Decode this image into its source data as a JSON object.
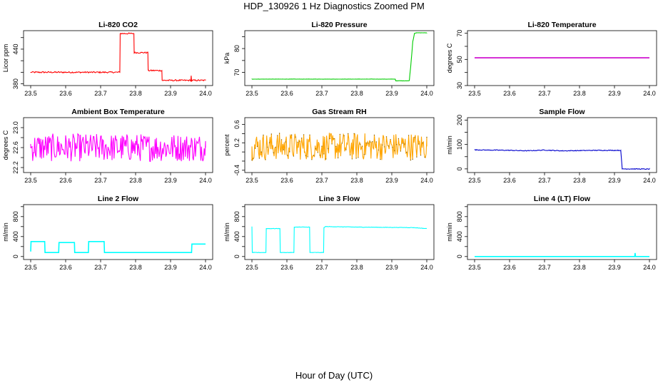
{
  "figure": {
    "title": "HDP_130926  1 Hz Diagnostics Zoomed PM",
    "xlabel": "Hour of Day (UTC)"
  },
  "chart_data": [
    {
      "type": "line",
      "title": "Li-820 CO2",
      "ylabel": "Licor ppm",
      "color": "#ff0000",
      "xlim": [
        23.5,
        24.0
      ],
      "xticks": [
        "23.5",
        "23.6",
        "23.7",
        "23.8",
        "23.9",
        "24.0"
      ],
      "ylim": [
        377,
        472
      ],
      "yticks": [
        "380",
        "440"
      ],
      "ytick_values": [
        380,
        440
      ],
      "y_extra_ticks": [
        400,
        420,
        460
      ],
      "x": [
        23.5,
        23.755,
        23.756,
        23.795,
        23.796,
        23.835,
        23.836,
        23.875,
        23.876,
        23.958,
        23.959,
        23.96,
        23.961,
        24.0
      ],
      "y": [
        400,
        400,
        467,
        467,
        434,
        434,
        403,
        403,
        386,
        386,
        394,
        384,
        386,
        386
      ],
      "noise": 1.2
    },
    {
      "type": "line",
      "title": "Li-820 Pressure",
      "ylabel": "kPa",
      "color": "#00cc00",
      "xlim": [
        23.5,
        24.0
      ],
      "xticks": [
        "23.5",
        "23.6",
        "23.7",
        "23.8",
        "23.9",
        "24.0"
      ],
      "ylim": [
        64.5,
        87.5
      ],
      "yticks": [
        "70",
        "80"
      ],
      "ytick_values": [
        70,
        80
      ],
      "y_extra_ticks": [
        75,
        85
      ],
      "x": [
        23.5,
        23.91,
        23.911,
        23.95,
        23.955,
        23.96,
        23.965,
        23.97,
        24.0
      ],
      "y": [
        67.2,
        67.2,
        66.5,
        66.5,
        74,
        83,
        86.4,
        86.6,
        86.6
      ],
      "noise": 0.05
    },
    {
      "type": "line",
      "title": "Li-820 Temperature",
      "ylabel": "degrees C",
      "color": "#cc00cc",
      "xlim": [
        23.5,
        24.0
      ],
      "xticks": [
        "23.5",
        "23.6",
        "23.7",
        "23.8",
        "23.9",
        "24.0"
      ],
      "ylim": [
        30,
        72
      ],
      "yticks": [
        "30",
        "50",
        "70"
      ],
      "ytick_values": [
        30,
        50,
        70
      ],
      "y_extra_ticks": [
        40,
        60
      ],
      "x": [
        23.5,
        24.0
      ],
      "y": [
        51.2,
        51.2
      ],
      "noise": 0
    },
    {
      "type": "line",
      "title": "Ambient Box Temperature",
      "ylabel": "degrees C",
      "color": "#ff00ff",
      "xlim": [
        23.5,
        24.0
      ],
      "xticks": [
        "23.5",
        "23.6",
        "23.7",
        "23.8",
        "23.9",
        "24.0"
      ],
      "ylim": [
        22.1,
        23.2
      ],
      "yticks": [
        "22.2",
        "22.6",
        "23.0"
      ],
      "ytick_values": [
        22.2,
        22.6,
        23.0
      ],
      "y_extra_ticks": [
        22.4,
        22.8
      ],
      "x": [
        23.5,
        24.0
      ],
      "y": [
        22.6,
        22.6
      ],
      "noise": 0.28
    },
    {
      "type": "line",
      "title": "Gas Stream RH",
      "ylabel": "percent",
      "color": "#ffa500",
      "marker_color": "#8b6508",
      "xlim": [
        23.5,
        24.0
      ],
      "xticks": [
        "23.5",
        "23.6",
        "23.7",
        "23.8",
        "23.9",
        "24.0"
      ],
      "ylim": [
        -0.45,
        0.75
      ],
      "yticks": [
        "-0.4",
        "0.2",
        "0.6"
      ],
      "ytick_values": [
        -0.4,
        0.2,
        0.6
      ],
      "y_extra_ticks": [
        -0.2,
        0.0,
        0.4
      ],
      "x": [
        23.5,
        24.0
      ],
      "y": [
        0.12,
        0.12
      ],
      "noise": 0.3
    },
    {
      "type": "line",
      "title": "Sample Flow",
      "ylabel": "ml/min",
      "color": "#0000cd",
      "xlim": [
        23.5,
        24.0
      ],
      "xticks": [
        "23.5",
        "23.6",
        "23.7",
        "23.8",
        "23.9",
        "24.0"
      ],
      "ylim": [
        -15,
        210
      ],
      "yticks": [
        "0",
        "100",
        "200"
      ],
      "ytick_values": [
        0,
        100,
        200
      ],
      "y_extra_ticks": [
        50,
        150
      ],
      "x": [
        23.5,
        23.6,
        23.65,
        23.7,
        23.75,
        23.8,
        23.85,
        23.918,
        23.922,
        23.95,
        24.0
      ],
      "y": [
        78,
        76,
        74,
        77,
        74,
        75,
        76,
        76,
        0,
        0,
        -1
      ],
      "noise": 1.5
    },
    {
      "type": "line",
      "title": "Line 2 Flow",
      "ylabel": "ml/min",
      "color": "#00ffff",
      "xlim": [
        23.5,
        24.0
      ],
      "xticks": [
        "23.5",
        "23.6",
        "23.7",
        "23.8",
        "23.9",
        "24.0"
      ],
      "ylim": [
        -60,
        1040
      ],
      "yticks": [
        "0",
        "400",
        "800"
      ],
      "ytick_values": [
        0,
        400,
        800
      ],
      "y_extra_ticks": [
        200,
        600,
        1000
      ],
      "x": [
        23.5,
        23.501,
        23.54,
        23.541,
        23.58,
        23.581,
        23.625,
        23.626,
        23.665,
        23.666,
        23.71,
        23.711,
        23.96,
        23.961,
        24.0
      ],
      "y": [
        100,
        300,
        300,
        80,
        80,
        280,
        280,
        80,
        80,
        300,
        300,
        80,
        80,
        250,
        250
      ],
      "noise": 0
    },
    {
      "type": "line",
      "title": "Line 3 Flow",
      "ylabel": "ml/min",
      "color": "#00ffff",
      "xlim": [
        23.5,
        24.0
      ],
      "xticks": [
        "23.5",
        "23.6",
        "23.7",
        "23.8",
        "23.9",
        "24.0"
      ],
      "ylim": [
        -60,
        1040
      ],
      "yticks": [
        "0",
        "400",
        "800"
      ],
      "ytick_values": [
        0,
        400,
        800
      ],
      "y_extra_ticks": [
        200,
        600,
        1000
      ],
      "x": [
        23.5,
        23.501,
        23.505,
        23.54,
        23.541,
        23.58,
        23.581,
        23.62,
        23.621,
        23.665,
        23.666,
        23.705,
        23.706,
        23.71,
        23.8,
        23.96,
        24.0
      ],
      "y": [
        600,
        80,
        80,
        80,
        560,
        560,
        80,
        80,
        590,
        590,
        80,
        80,
        580,
        600,
        590,
        580,
        560
      ],
      "noise": 4
    },
    {
      "type": "line",
      "title": "Line 4 (LT) Flow",
      "ylabel": "ml/min",
      "color": "#00ffff",
      "xlim": [
        23.5,
        24.0
      ],
      "xticks": [
        "23.5",
        "23.6",
        "23.7",
        "23.8",
        "23.9",
        "24.0"
      ],
      "ylim": [
        -60,
        1040
      ],
      "yticks": [
        "0",
        "400",
        "800"
      ],
      "ytick_values": [
        0,
        400,
        800
      ],
      "y_extra_ticks": [
        200,
        600,
        1000
      ],
      "x": [
        23.5,
        23.958,
        23.959,
        23.96,
        23.961,
        24.0
      ],
      "y": [
        0,
        0,
        70,
        10,
        0,
        0
      ],
      "noise": 0
    }
  ]
}
